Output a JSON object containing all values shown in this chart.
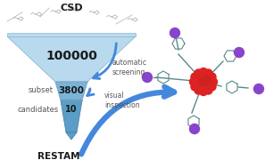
{
  "funnel_color_light": "#b8d9ee",
  "funnel_color_mid": "#7ab4d8",
  "funnel_color_dark": "#5a9ec8",
  "arrow_color": "#3a7fc1",
  "arrow_color_bright": "#4488dd",
  "text_color_dark": "#1a1a1a",
  "text_color_gray": "#555555",
  "bg_color": "#ffffff",
  "csd_label": "CSD",
  "number_top": "100000",
  "number_mid": "3800",
  "number_bot": "10",
  "label_subset": "subset",
  "label_candidates": "candidates",
  "label_auto": "automatic\nscreening",
  "label_visual": "visual\ninspection",
  "label_restam": "RESTAM",
  "figsize": [
    2.97,
    1.89
  ],
  "dpi": 100
}
